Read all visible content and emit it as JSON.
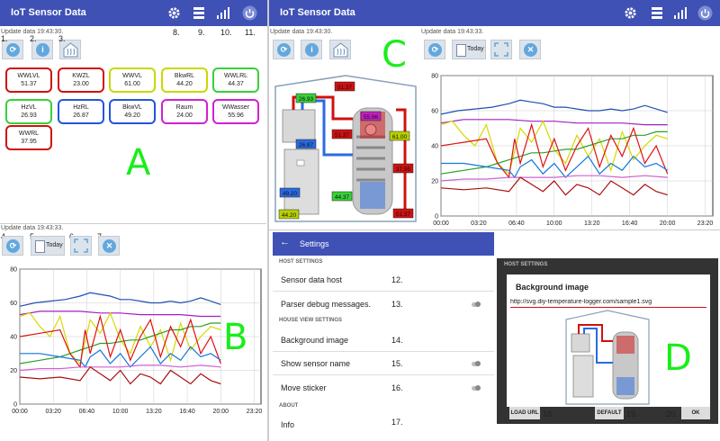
{
  "app": {
    "title": "IoT Sensor Data"
  },
  "update_text": "Update data 19:43:30.",
  "update_text_chart": "Update data 19:43:33.",
  "today_label": "Today",
  "info_icon": "i",
  "markers": {
    "n1": "1.",
    "n2": "2.",
    "n3": "3.",
    "n4": "4.",
    "n5": "5.",
    "n6": "6.",
    "n7": "7.",
    "n8": "8.",
    "n9": "9.",
    "n10": "10.",
    "n11": "11.",
    "n12": "12.",
    "n13": "13.",
    "n14": "14.",
    "n15": "15.",
    "n16": "16.",
    "n17": "17.",
    "n18": "18.",
    "n19": "19.",
    "n20": "20."
  },
  "panel_labels": {
    "A": "A",
    "B": "B",
    "C": "C",
    "D": "D"
  },
  "tiles": [
    {
      "name": "WWLVL",
      "value": "51.37",
      "color": "#d01010"
    },
    {
      "name": "KWZL",
      "value": "23.00",
      "color": "#d01010"
    },
    {
      "name": "WWVL",
      "value": "61.00",
      "color": "#c8d800"
    },
    {
      "name": "BkwRL",
      "value": "44.20",
      "color": "#c8d800"
    },
    {
      "name": "WWLRL",
      "value": "44.37",
      "color": "#39d039"
    },
    {
      "name": "HzVL",
      "value": "26.93",
      "color": "#39d039"
    },
    {
      "name": "HzRL",
      "value": "26.87",
      "color": "#2255dd"
    },
    {
      "name": "BkwVL",
      "value": "49.20",
      "color": "#2255dd"
    },
    {
      "name": "Raum",
      "value": "24.00",
      "color": "#d020d0"
    },
    {
      "name": "WWasser",
      "value": "55.96",
      "color": "#d020d0"
    },
    {
      "name": "WWRL",
      "value": "37.95",
      "color": "#d01010"
    }
  ],
  "house_values": [
    {
      "value": "26.93",
      "color": "#39d039"
    },
    {
      "value": "26.87",
      "color": "#2a6ae0"
    },
    {
      "value": "49.20",
      "color": "#2a6ae0"
    },
    {
      "value": "51.37",
      "color": "#d01010"
    },
    {
      "value": "55.96",
      "color": "#c020c0"
    },
    {
      "value": "51.37",
      "color": "#d01010"
    },
    {
      "value": "61.00",
      "color": "#b8d000"
    },
    {
      "value": "37.95",
      "color": "#d01010"
    },
    {
      "value": "44.37",
      "color": "#39d039"
    },
    {
      "value": "51.37",
      "color": "#d01010"
    },
    {
      "value": "44.20",
      "color": "#b8d000"
    }
  ],
  "chart_data": {
    "type": "line",
    "xlim": [
      0,
      24
    ],
    "ylim": [
      0,
      80
    ],
    "x_ticks": [
      "00:00",
      "03:20",
      "06:40",
      "10:00",
      "13:20",
      "16:40",
      "20:00",
      "23:20"
    ],
    "y_ticks": [
      "0",
      "20",
      "40",
      "60",
      "80"
    ],
    "grid": true,
    "series": [
      {
        "color": "#1f4fb5",
        "x": [
          0,
          1.5,
          3,
          4.5,
          6,
          7,
          8,
          9,
          10,
          11,
          12,
          13,
          14,
          15,
          16,
          17,
          18,
          19,
          20
        ],
        "values": [
          58,
          60,
          61,
          62,
          64,
          66,
          65,
          64,
          62,
          62,
          61,
          60,
          60,
          61,
          60,
          61,
          63,
          61,
          59
        ]
      },
      {
        "color": "#a020c0",
        "x": [
          0,
          2,
          4,
          6,
          8,
          10,
          12,
          14,
          16,
          18,
          20
        ],
        "values": [
          53,
          55,
          55,
          55,
          54,
          54,
          53,
          53,
          53,
          52,
          52
        ]
      },
      {
        "color": "#d8d800",
        "x": [
          0,
          1,
          2,
          3,
          4,
          5,
          6,
          7,
          8,
          9,
          10,
          11,
          12,
          13,
          14,
          15,
          16,
          17,
          18,
          19,
          20
        ],
        "values": [
          52,
          54,
          46,
          40,
          52,
          30,
          24,
          50,
          42,
          54,
          38,
          30,
          46,
          34,
          44,
          26,
          48,
          32,
          40,
          46,
          44
        ]
      },
      {
        "color": "#2aa02a",
        "x": [
          0,
          2,
          4,
          5,
          6,
          7,
          8,
          9,
          10,
          11,
          12,
          13,
          14,
          15,
          16,
          17,
          18,
          19,
          20
        ],
        "values": [
          24,
          26,
          28,
          30,
          32,
          34,
          36,
          36,
          37,
          38,
          38,
          40,
          42,
          44,
          44,
          46,
          46,
          48,
          48
        ]
      },
      {
        "color": "#e01010",
        "x": [
          0,
          2,
          4,
          5,
          6,
          6.5,
          7,
          8,
          9,
          10,
          11,
          12,
          13,
          14,
          15,
          16,
          17,
          18,
          19,
          20
        ],
        "values": [
          40,
          42,
          44,
          30,
          22,
          44,
          30,
          52,
          28,
          44,
          26,
          40,
          50,
          28,
          46,
          34,
          50,
          30,
          40,
          24
        ]
      },
      {
        "color": "#1177dd",
        "x": [
          0,
          2,
          4,
          6,
          6.5,
          7,
          8,
          9,
          10,
          11,
          12,
          13,
          14,
          15,
          16,
          17,
          18,
          19,
          20
        ],
        "values": [
          30,
          30,
          28,
          26,
          22,
          28,
          32,
          24,
          30,
          22,
          28,
          34,
          24,
          30,
          26,
          34,
          28,
          30,
          26
        ]
      },
      {
        "color": "#d060d0",
        "x": [
          0,
          2,
          4,
          6,
          8,
          10,
          12,
          14,
          16,
          18,
          20
        ],
        "values": [
          20,
          21,
          21,
          22,
          22,
          22,
          23,
          23,
          22,
          23,
          22
        ]
      },
      {
        "color": "#aa1010",
        "x": [
          0,
          2,
          4,
          6,
          7,
          8,
          9,
          10,
          11,
          12,
          13,
          14,
          15,
          16,
          17,
          18,
          19,
          20
        ],
        "values": [
          16,
          15,
          16,
          14,
          22,
          18,
          14,
          20,
          12,
          18,
          16,
          12,
          20,
          16,
          12,
          18,
          14,
          12
        ]
      }
    ]
  },
  "settings": {
    "title": "Settings",
    "sections": {
      "host": "HOST SETTINGS",
      "house": "HOUSE VIEW SETTINGS",
      "about": "ABOUT"
    },
    "items": {
      "host": "Sensor data host",
      "debug": "Parser debug messages.",
      "bg": "Background image",
      "sensor_name": "Show sensor name",
      "sticker": "Move sticker",
      "info": "Info"
    }
  },
  "dialog": {
    "header": "HOST SETTINGS",
    "title": "Background image",
    "url": "http://svg.diy-temperature-logger.com/sample1.svg",
    "load": "LOAD URL",
    "default": "DEFAULT",
    "ok": "OK"
  }
}
